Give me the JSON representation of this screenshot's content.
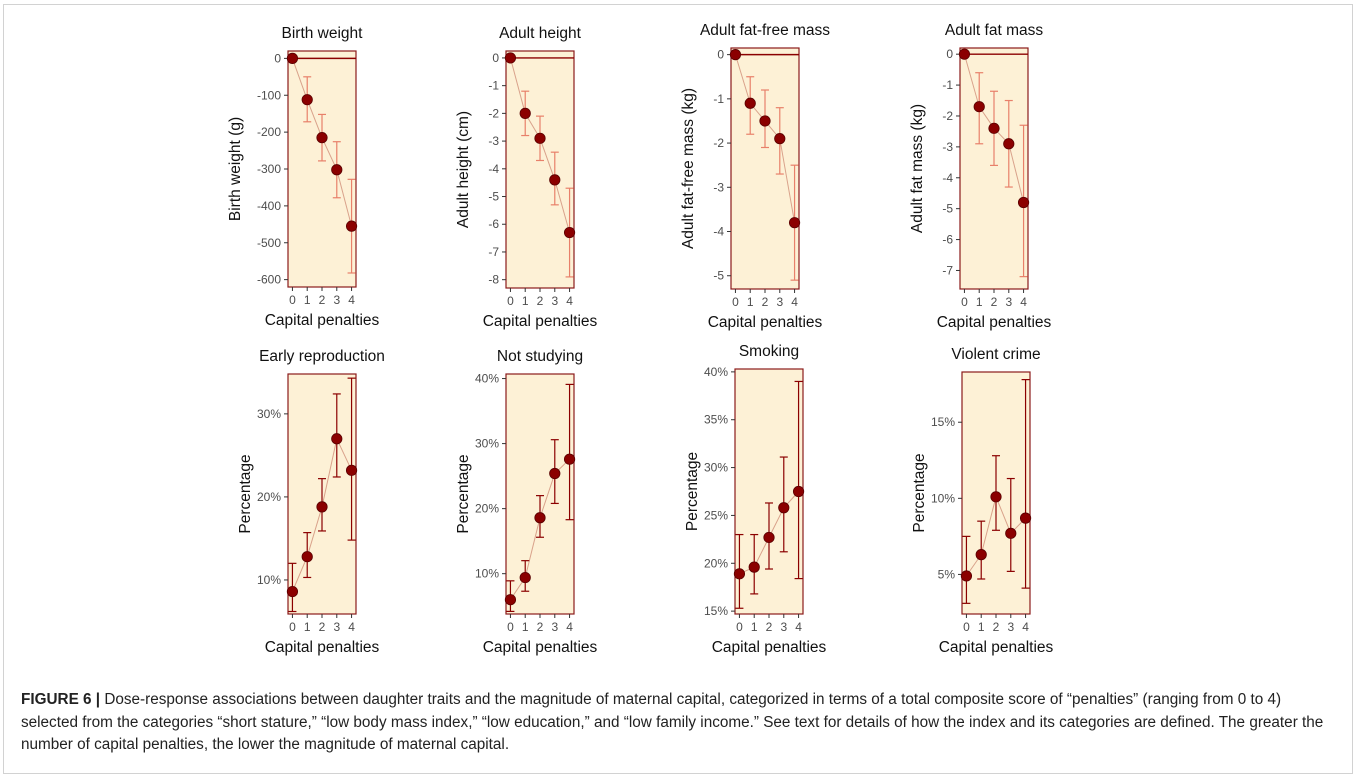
{
  "figure": {
    "caption_label": "FIGURE 6 |",
    "caption_text": "Dose-response associations between daughter traits and the magnitude of maternal capital, categorized in terms of a total composite score of “penalties” (ranging from 0 to 4) selected from the categories “short stature,” “low body mass index,” “low education,” and “low family income.” See text for details of how the index and its categories are defined. The greater the number of capital penalties, the lower the magnitude of maternal capital."
  },
  "colors": {
    "panel_fill": "#fdf1d6",
    "panel_border": "#8b1a1a",
    "point": "#8b0000",
    "connector": "#d9a28b",
    "errorbar_top": "#e8806a",
    "errorbar_bottom": "#8b0000",
    "reference_line": "#8b0000"
  },
  "chart_data": [
    {
      "type": "scatter",
      "title": "Birth weight",
      "xlabel": "Capital penalties",
      "ylabel": "Birth weight (g)",
      "x": [
        0,
        1,
        2,
        3,
        4
      ],
      "y": [
        0,
        -112,
        -215,
        -302,
        -455
      ],
      "lower": [
        0,
        -172,
        -278,
        -378,
        -582
      ],
      "upper": [
        0,
        -50,
        -152,
        -226,
        -328
      ],
      "xlim": [
        -0.3,
        4.3
      ],
      "ylim": [
        -620,
        20
      ],
      "yticks": [
        0,
        -100,
        -200,
        -300,
        -400,
        -500,
        -600
      ],
      "yticklabels": [
        "0",
        "-100",
        "-200",
        "-300",
        "-400",
        "-500",
        "-600"
      ],
      "xticks": [
        0,
        1,
        2,
        3,
        4
      ],
      "xticklabels": [
        "0",
        "1",
        "2",
        "3",
        "4"
      ],
      "reference_line": 0
    },
    {
      "type": "scatter",
      "title": "Adult height",
      "xlabel": "Capital penalties",
      "ylabel": "Adult height (cm)",
      "x": [
        0,
        1,
        2,
        3,
        4
      ],
      "y": [
        0,
        -2.0,
        -2.9,
        -4.4,
        -6.3
      ],
      "lower": [
        0,
        -2.8,
        -3.7,
        -5.3,
        -7.9
      ],
      "upper": [
        0,
        -1.2,
        -2.1,
        -3.4,
        -4.7
      ],
      "xlim": [
        -0.3,
        4.3
      ],
      "ylim": [
        -8.3,
        0.25
      ],
      "yticks": [
        0,
        -1,
        -2,
        -3,
        -4,
        -5,
        -6,
        -7,
        -8
      ],
      "yticklabels": [
        "0",
        "-1",
        "-2",
        "-3",
        "-4",
        "-5",
        "-6",
        "-7",
        "-8"
      ],
      "xticks": [
        0,
        1,
        2,
        3,
        4
      ],
      "xticklabels": [
        "0",
        "1",
        "2",
        "3",
        "4"
      ],
      "reference_line": 0
    },
    {
      "type": "scatter",
      "title": "Adult fat-free mass",
      "xlabel": "Capital penalties",
      "ylabel": "Adult fat-free mass (kg)",
      "x": [
        0,
        1,
        2,
        3,
        4
      ],
      "y": [
        0,
        -1.1,
        -1.5,
        -1.9,
        -3.8
      ],
      "lower": [
        0,
        -1.8,
        -2.1,
        -2.7,
        -5.1
      ],
      "upper": [
        0,
        -0.5,
        -0.8,
        -1.2,
        -2.5
      ],
      "xlim": [
        -0.3,
        4.3
      ],
      "ylim": [
        -5.3,
        0.15
      ],
      "yticks": [
        0,
        -1,
        -2,
        -3,
        -4,
        -5
      ],
      "yticklabels": [
        "0",
        "-1",
        "-2",
        "-3",
        "-4",
        "-5"
      ],
      "xticks": [
        0,
        1,
        2,
        3,
        4
      ],
      "xticklabels": [
        "0",
        "1",
        "2",
        "3",
        "4"
      ],
      "reference_line": 0
    },
    {
      "type": "scatter",
      "title": "Adult fat mass",
      "xlabel": "Capital penalties",
      "ylabel": "Adult fat mass (kg)",
      "x": [
        0,
        1,
        2,
        3,
        4
      ],
      "y": [
        0,
        -1.7,
        -2.4,
        -2.9,
        -4.8
      ],
      "lower": [
        0,
        -2.9,
        -3.6,
        -4.3,
        -7.2
      ],
      "upper": [
        0,
        -0.6,
        -1.2,
        -1.5,
        -2.3
      ],
      "xlim": [
        -0.3,
        4.3
      ],
      "ylim": [
        -7.6,
        0.2
      ],
      "yticks": [
        0,
        -1,
        -2,
        -3,
        -4,
        -5,
        -6,
        -7
      ],
      "yticklabels": [
        "0",
        "-1",
        "-2",
        "-3",
        "-4",
        "-5",
        "-6",
        "-7"
      ],
      "xticks": [
        0,
        1,
        2,
        3,
        4
      ],
      "xticklabels": [
        "0",
        "1",
        "2",
        "3",
        "4"
      ],
      "reference_line": 0
    },
    {
      "type": "scatter",
      "title": "Early reproduction",
      "xlabel": "Capital penalties",
      "ylabel": "Percentage",
      "x": [
        0,
        1,
        2,
        3,
        4
      ],
      "y": [
        8.6,
        12.8,
        18.8,
        27.0,
        23.2
      ],
      "lower": [
        6.2,
        10.3,
        15.9,
        22.4,
        14.8
      ],
      "upper": [
        12.0,
        15.7,
        22.2,
        32.4,
        34.3
      ],
      "xlim": [
        -0.3,
        4.3
      ],
      "ylim": [
        5.9,
        34.8
      ],
      "yticks": [
        10,
        20,
        30
      ],
      "yticklabels": [
        "10%",
        "20%",
        "30%"
      ],
      "xticks": [
        0,
        1,
        2,
        3,
        4
      ],
      "xticklabels": [
        "0",
        "1",
        "2",
        "3",
        "4"
      ]
    },
    {
      "type": "scatter",
      "title": "Not studying",
      "xlabel": "Capital penalties",
      "ylabel": "Percentage",
      "x": [
        0,
        1,
        2,
        3,
        4
      ],
      "y": [
        6.0,
        9.4,
        18.6,
        25.4,
        27.6
      ],
      "lower": [
        4.2,
        7.3,
        15.6,
        20.8,
        18.3
      ],
      "upper": [
        8.9,
        12.0,
        22.0,
        30.6,
        39.1
      ],
      "xlim": [
        -0.3,
        4.3
      ],
      "ylim": [
        3.8,
        40.7
      ],
      "yticks": [
        10,
        20,
        30,
        40
      ],
      "yticklabels": [
        "10%",
        "20%",
        "30%",
        "40%"
      ],
      "xticks": [
        0,
        1,
        2,
        3,
        4
      ],
      "xticklabels": [
        "0",
        "1",
        "2",
        "3",
        "4"
      ]
    },
    {
      "type": "scatter",
      "title": "Smoking",
      "xlabel": "Capital penalties",
      "ylabel": "Percentage",
      "x": [
        0,
        1,
        2,
        3,
        4
      ],
      "y": [
        18.9,
        19.6,
        22.7,
        25.8,
        27.5
      ],
      "lower": [
        15.3,
        16.8,
        19.4,
        21.2,
        18.4
      ],
      "upper": [
        23.0,
        23.0,
        26.3,
        31.1,
        39.0
      ],
      "xlim": [
        -0.3,
        4.3
      ],
      "ylim": [
        14.7,
        40.3
      ],
      "yticks": [
        15,
        20,
        25,
        30,
        35,
        40
      ],
      "yticklabels": [
        "15%",
        "20%",
        "25%",
        "30%",
        "35%",
        "40%"
      ],
      "xticks": [
        0,
        1,
        2,
        3,
        4
      ],
      "xticklabels": [
        "0",
        "1",
        "2",
        "3",
        "4"
      ]
    },
    {
      "type": "scatter",
      "title": "Violent crime",
      "xlabel": "Capital penalties",
      "ylabel": "Percentage",
      "x": [
        0,
        1,
        2,
        3,
        4
      ],
      "y": [
        4.9,
        6.3,
        10.1,
        7.7,
        8.7
      ],
      "lower": [
        3.1,
        4.7,
        7.9,
        5.2,
        4.1
      ],
      "upper": [
        7.5,
        8.5,
        12.8,
        11.3,
        17.8
      ],
      "xlim": [
        -0.3,
        4.3
      ],
      "ylim": [
        2.4,
        18.3
      ],
      "yticks": [
        5,
        10,
        15
      ],
      "yticklabels": [
        "5%",
        "10%",
        "15%"
      ],
      "xticks": [
        0,
        1,
        2,
        3,
        4
      ],
      "xticklabels": [
        "0",
        "1",
        "2",
        "3",
        "4"
      ]
    }
  ]
}
